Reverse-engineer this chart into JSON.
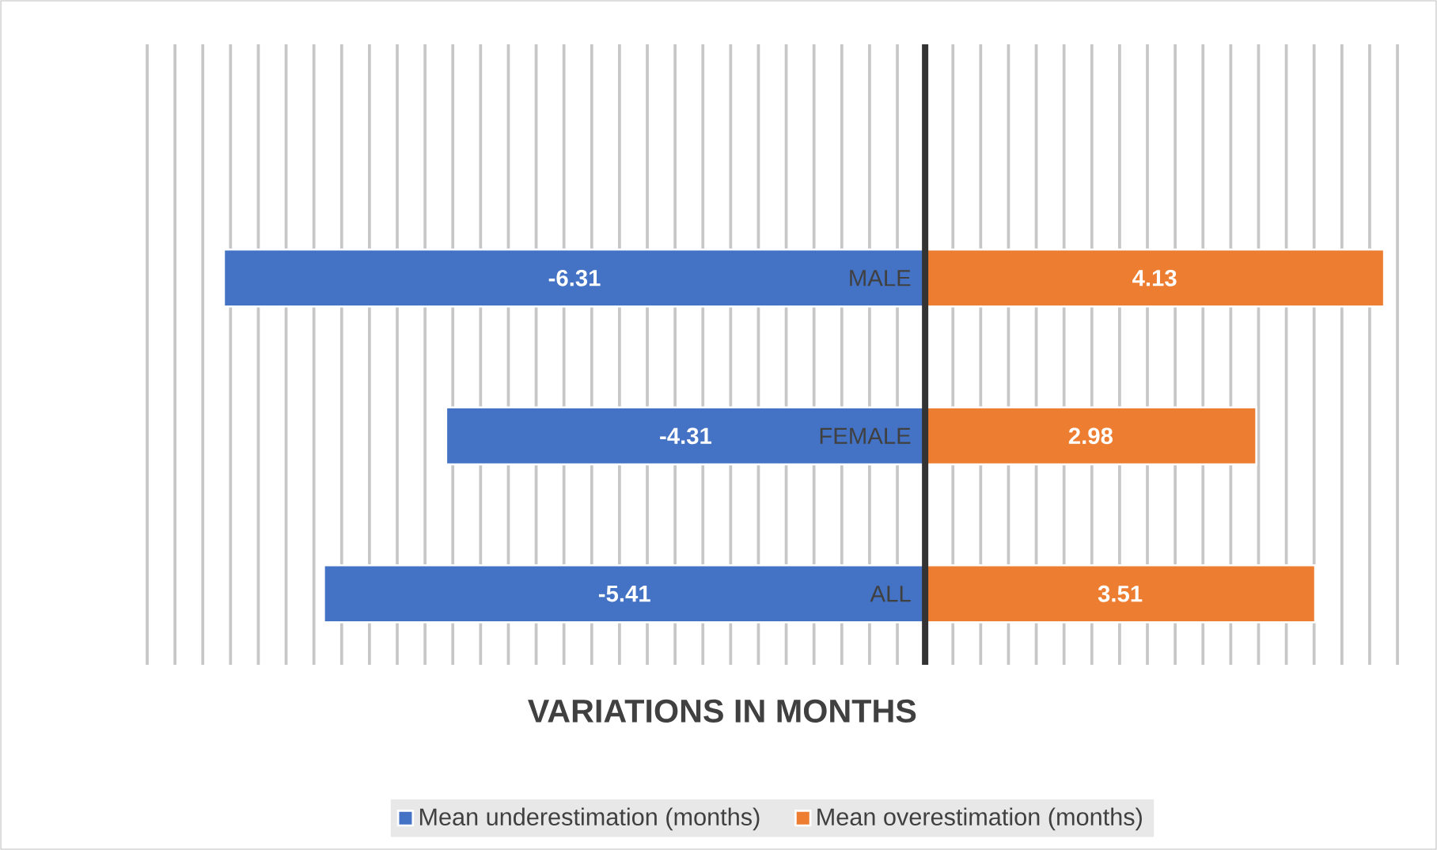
{
  "chart_data": {
    "type": "bar",
    "orientation": "horizontal",
    "stacked": true,
    "xlabel": "VARIATIONS IN MONTHS",
    "categories": [
      "MALE",
      "FEMALE",
      "ALL"
    ],
    "series": [
      {
        "name": "Mean underestimation (months)",
        "color": "#4472c4",
        "values": [
          -6.31,
          -4.31,
          -5.41
        ]
      },
      {
        "name": "Mean overestimation (months)",
        "color": "#ed7d31",
        "values": [
          4.13,
          2.98,
          3.51
        ]
      }
    ],
    "xlim": [
      -7,
      4.25
    ],
    "xticks": [
      {
        "value": -7,
        "label": null
      },
      {
        "value": -6.75,
        "label": null
      },
      {
        "value": -6.5,
        "label": null
      },
      {
        "value": -6.25,
        "label": null
      },
      {
        "value": -6,
        "label": null
      },
      {
        "value": -5.75,
        "label": null
      },
      {
        "value": -5.5,
        "label": null
      },
      {
        "value": -5.25,
        "label": null
      },
      {
        "value": -5,
        "label": null
      },
      {
        "value": -4.75,
        "label": null
      },
      {
        "value": -4.5,
        "label": null
      },
      {
        "value": -4.25,
        "label": null
      },
      {
        "value": -4,
        "label": null
      },
      {
        "value": -3.75,
        "label": null
      },
      {
        "value": -3.5,
        "label": null
      },
      {
        "value": -3.25,
        "label": null
      },
      {
        "value": -3,
        "label": null
      },
      {
        "value": -2.75,
        "label": null
      },
      {
        "value": -2.5,
        "label": null
      },
      {
        "value": -2.25,
        "label": null
      },
      {
        "value": -2,
        "label": null
      },
      {
        "value": -1.75,
        "label": null
      },
      {
        "value": -1.5,
        "label": null
      },
      {
        "value": -1.25,
        "label": null
      },
      {
        "value": -1,
        "label": null
      },
      {
        "value": -0.75,
        "label": null
      },
      {
        "value": -0.5,
        "label": null
      },
      {
        "value": -0.25,
        "label": null
      },
      {
        "value": 0,
        "label": null
      },
      {
        "value": 0.25,
        "label": null
      },
      {
        "value": 0.5,
        "label": null
      },
      {
        "value": 0.75,
        "label": null
      },
      {
        "value": 1,
        "label": null
      },
      {
        "value": 1.25,
        "label": null
      },
      {
        "value": 1.5,
        "label": null
      },
      {
        "value": 1.75,
        "label": null
      },
      {
        "value": 2,
        "label": null
      },
      {
        "value": 2.25,
        "label": null
      },
      {
        "value": 2.5,
        "label": null
      },
      {
        "value": 2.75,
        "label": null
      },
      {
        "value": 3,
        "label": null
      },
      {
        "value": 3.25,
        "label": null
      },
      {
        "value": 3.5,
        "label": null
      },
      {
        "value": 3.75,
        "label": null
      },
      {
        "value": 4,
        "label": null
      },
      {
        "value": 4.25,
        "label": null
      }
    ],
    "grid": "x",
    "legend": "bottom",
    "tick_labels": "y",
    "data_labels": true
  }
}
